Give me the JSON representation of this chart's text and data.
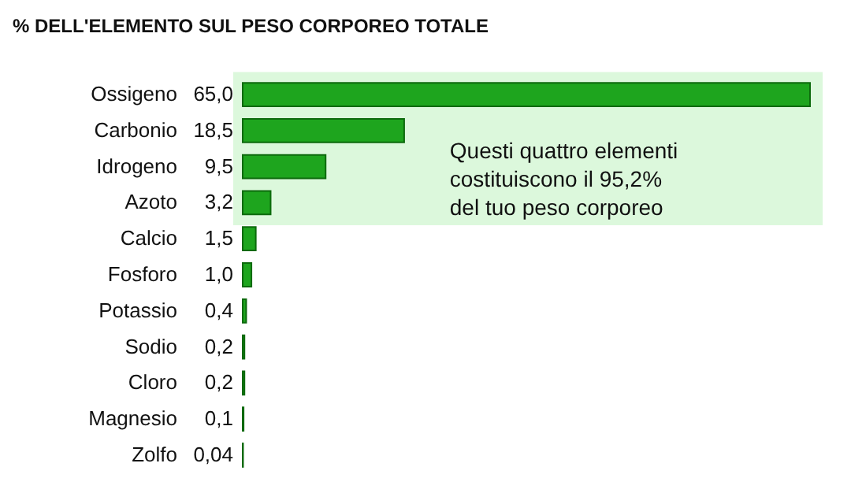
{
  "chart_data": {
    "type": "bar",
    "orientation": "horizontal",
    "title": "% DELL'ELEMENTO SUL PESO CORPOREO TOTALE",
    "categories": [
      "Ossigeno",
      "Carbonio",
      "Idrogeno",
      "Azoto",
      "Calcio",
      "Fosforo",
      "Potassio",
      "Sodio",
      "Cloro",
      "Magnesio",
      "Zolfo"
    ],
    "values": [
      65.0,
      18.5,
      9.5,
      3.2,
      1.5,
      1.0,
      0.4,
      0.2,
      0.2,
      0.1,
      0.04
    ],
    "value_labels": [
      "65,0",
      "18,5",
      "9,5",
      "3,2",
      "1,5",
      "1,0",
      "0,4",
      "0,2",
      "0,2",
      "0,1",
      "0,04"
    ],
    "color": "#1ea51e",
    "bands": [
      {
        "axis": "y",
        "from": "Ossigeno",
        "to": "Azoto",
        "label": "Questi quattro elementi costituiscono il 95,2% del tuo peso corporeo",
        "color": "#dcf8dc"
      }
    ],
    "tick_labels": "y",
    "grid": false
  }
}
